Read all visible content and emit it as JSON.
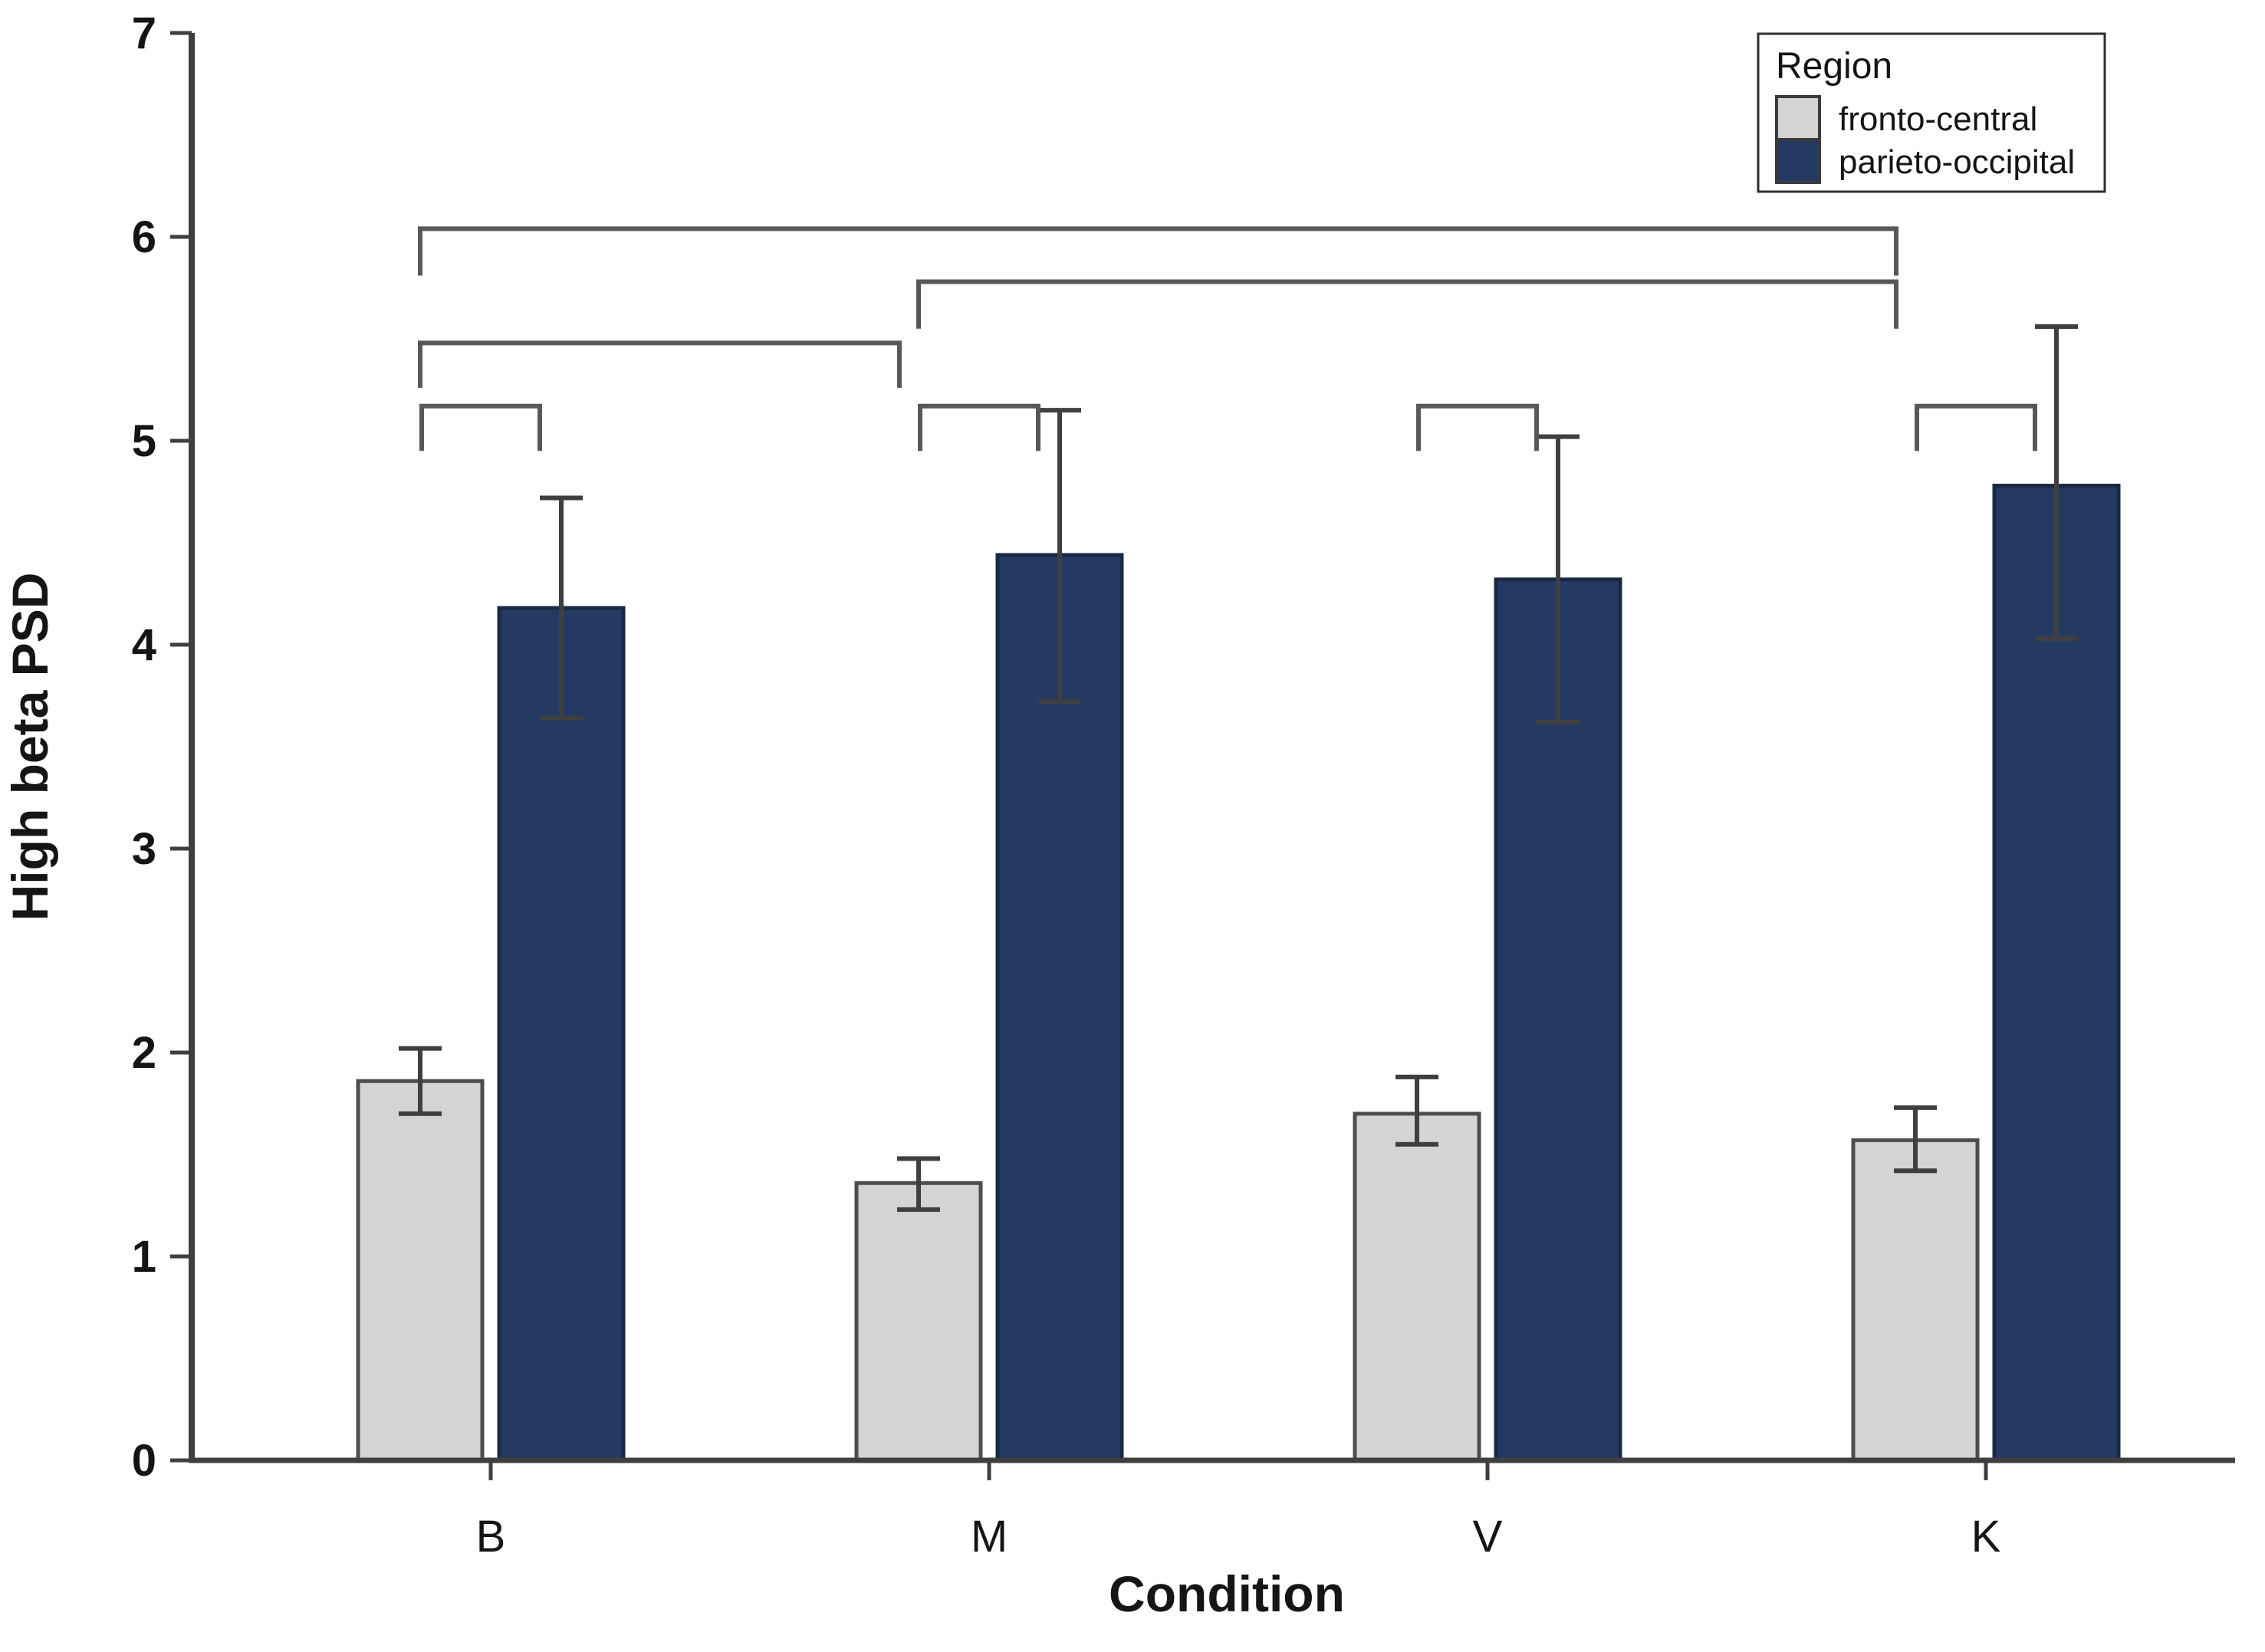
{
  "chart_data": {
    "type": "bar",
    "title": "",
    "xlabel": "Condition",
    "ylabel": "High beta PSD",
    "ylim": [
      0,
      7
    ],
    "yticks": [
      "0",
      "1",
      "2",
      "3",
      "4",
      "5",
      "6",
      "7"
    ],
    "grid": false,
    "background": "#ffffff",
    "axis_color": "#3f3f3f",
    "error_bar_color": "#3f3f3f",
    "bracket_color": "#585858",
    "categories": [
      "B",
      "M",
      "V",
      "K"
    ],
    "series": [
      {
        "name": "fronto-central",
        "color": "#d4d4d4",
        "border": "#4d4d4d",
        "values": [
          1.86,
          1.36,
          1.7,
          1.57
        ],
        "error_low": [
          1.7,
          1.23,
          1.55,
          1.42
        ],
        "error_high": [
          2.02,
          1.48,
          1.88,
          1.73
        ]
      },
      {
        "name": "parieto-occipital",
        "color": "#243a63",
        "border": "#1a2845",
        "values": [
          4.18,
          4.44,
          4.32,
          4.78
        ],
        "error_low": [
          3.64,
          3.72,
          3.62,
          4.03
        ],
        "error_high": [
          4.72,
          5.15,
          5.02,
          5.56
        ]
      }
    ],
    "legend": {
      "title": "Region",
      "position": "top-right",
      "entries": [
        "fronto-central",
        "parieto-occipital"
      ]
    },
    "significance_brackets": [
      {
        "type": "within-group",
        "group": "B",
        "y": 5.17,
        "drop_to": 4.95
      },
      {
        "type": "within-group",
        "group": "M",
        "y": 5.17,
        "drop_to": 4.95
      },
      {
        "type": "within-group",
        "group": "V",
        "y": 5.17,
        "drop_to": 4.95
      },
      {
        "type": "within-group",
        "group": "K",
        "y": 5.17,
        "drop_to": 4.95
      },
      {
        "type": "between-group",
        "from": "B",
        "to": "M",
        "y": 5.48,
        "drop_to": 5.26
      },
      {
        "type": "between-group",
        "from": "M",
        "to": "K",
        "y": 5.78,
        "drop_to": 5.55
      },
      {
        "type": "between-group",
        "from": "B",
        "to": "K",
        "y": 6.04,
        "drop_to": 5.81
      }
    ]
  }
}
